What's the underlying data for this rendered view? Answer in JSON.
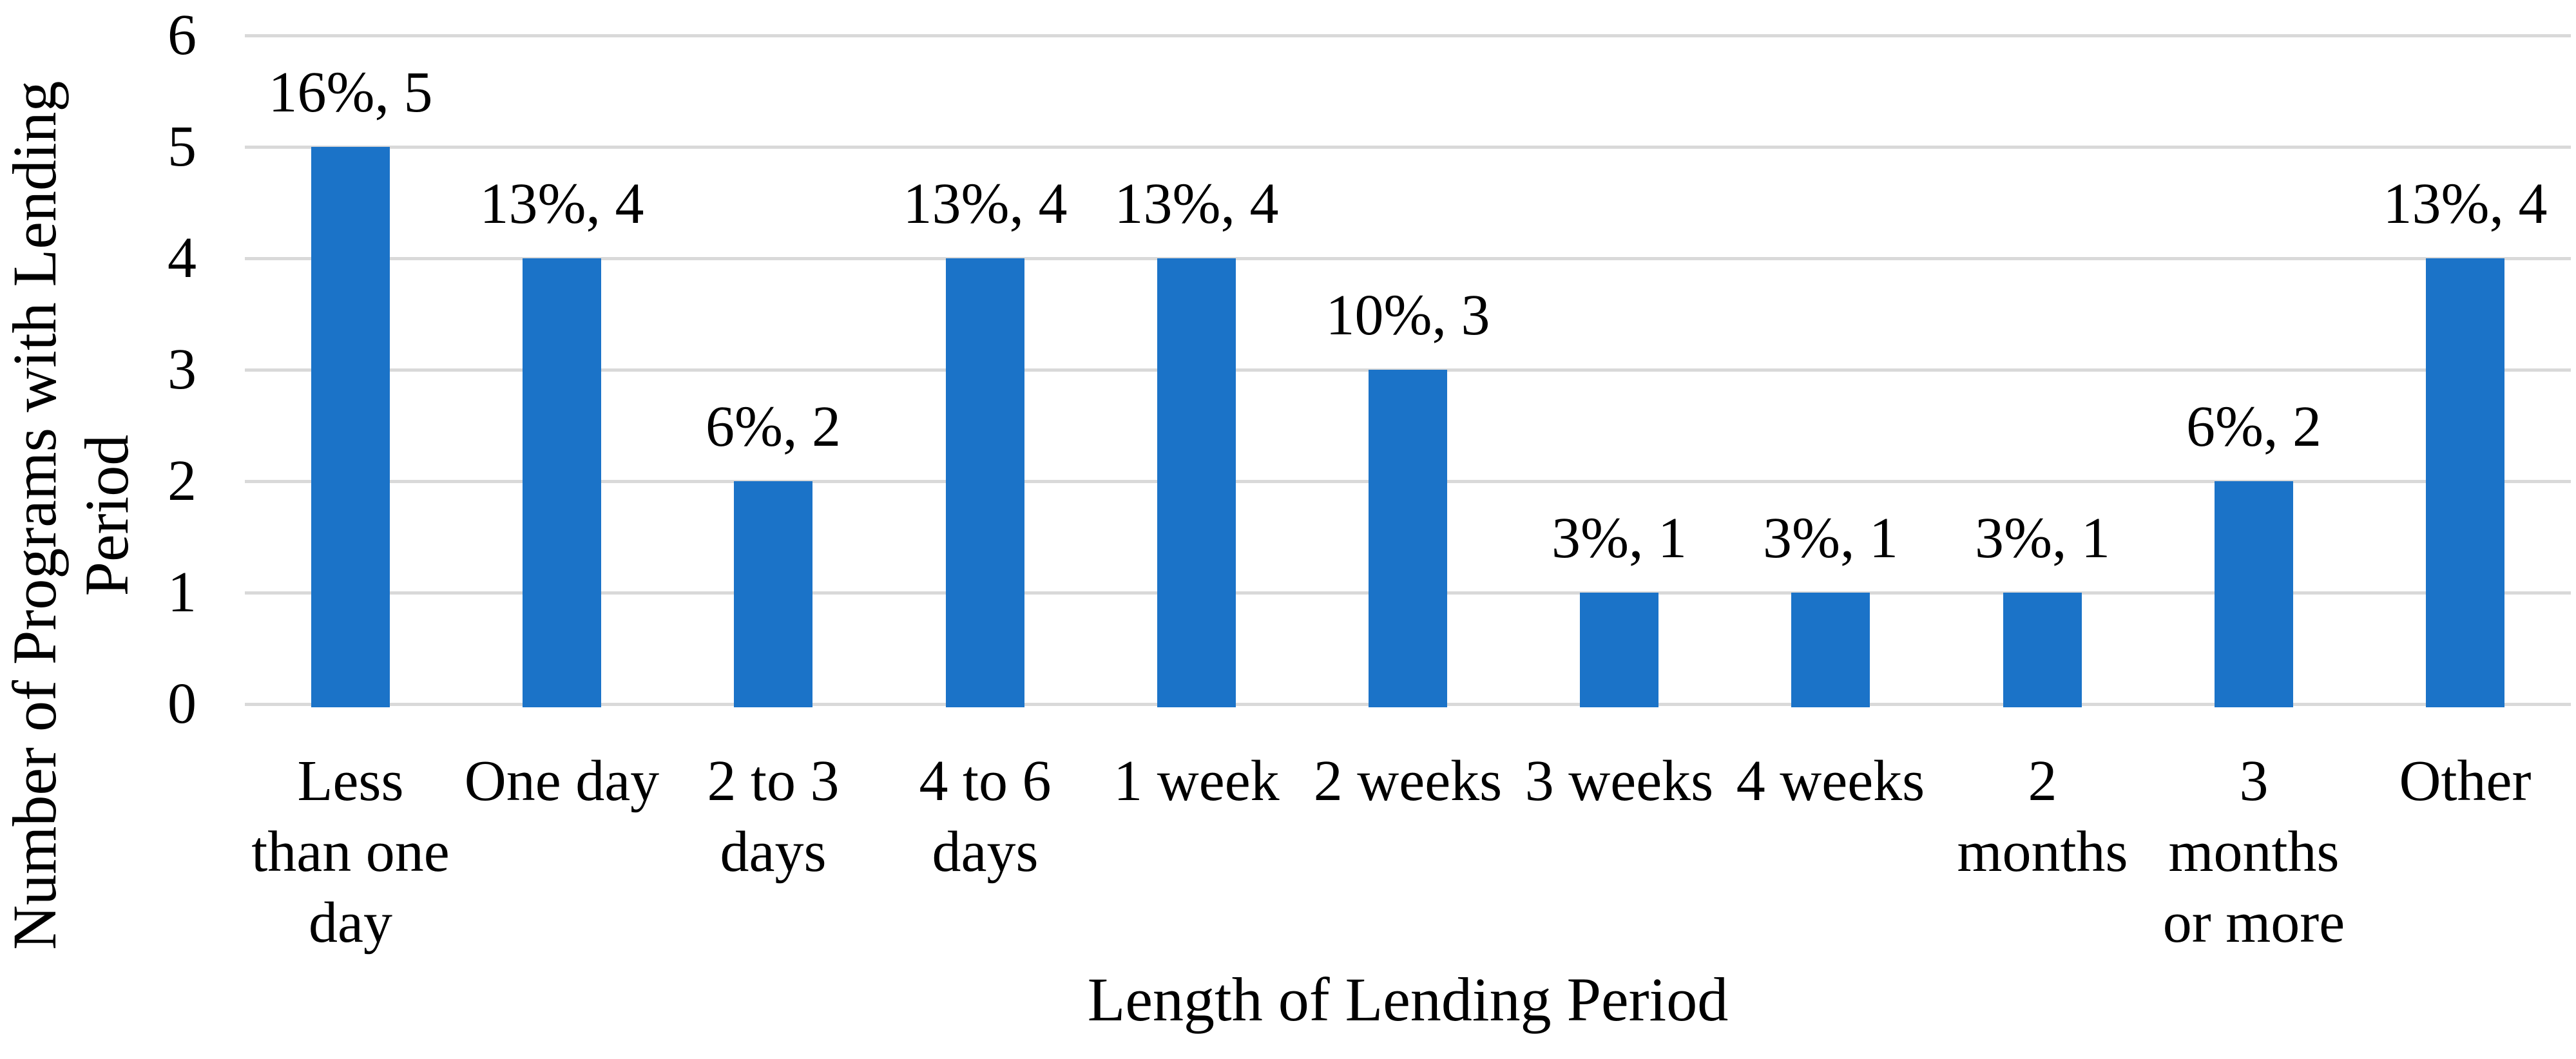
{
  "chart_data": {
    "type": "bar",
    "title": "",
    "xlabel": "Length of Lending Period",
    "ylabel": "Number of Programs with Lending Period",
    "ylabel_line1": "Number of Programs with Lending",
    "ylabel_line2": "Period",
    "categories": [
      "Less than one day",
      "One day",
      "2 to 3 days",
      "4 to 6 days",
      "1 week",
      "2 weeks",
      "3 weeks",
      "4 weeks",
      "2 months",
      "3 months or more",
      "Other"
    ],
    "category_lines": [
      [
        "Less",
        "than one",
        "day"
      ],
      [
        "One day"
      ],
      [
        "2 to 3",
        "days"
      ],
      [
        "4 to 6",
        "days"
      ],
      [
        "1 week"
      ],
      [
        "2 weeks"
      ],
      [
        "3 weeks"
      ],
      [
        "4 weeks"
      ],
      [
        "2",
        "months"
      ],
      [
        "3",
        "months",
        "or more"
      ],
      [
        "Other"
      ]
    ],
    "values": [
      5,
      4,
      2,
      4,
      4,
      3,
      1,
      1,
      1,
      2,
      4
    ],
    "percentages": [
      16,
      13,
      6,
      13,
      13,
      10,
      3,
      3,
      3,
      6,
      13
    ],
    "bar_labels": [
      "16%, 5",
      "13%, 4",
      "6%, 2",
      "13%, 4",
      "13%, 4",
      "10%, 3",
      "3%, 1",
      "3%, 1",
      "3%, 1",
      "6%, 2",
      "13%, 4"
    ],
    "yticks": [
      0,
      1,
      2,
      3,
      4,
      5,
      6
    ],
    "ylim": [
      0,
      6
    ],
    "grid": true,
    "legend": "none",
    "bar_color": "#1B73C8",
    "gridline_color": "#D9D9D9",
    "text_color": "#000000"
  }
}
